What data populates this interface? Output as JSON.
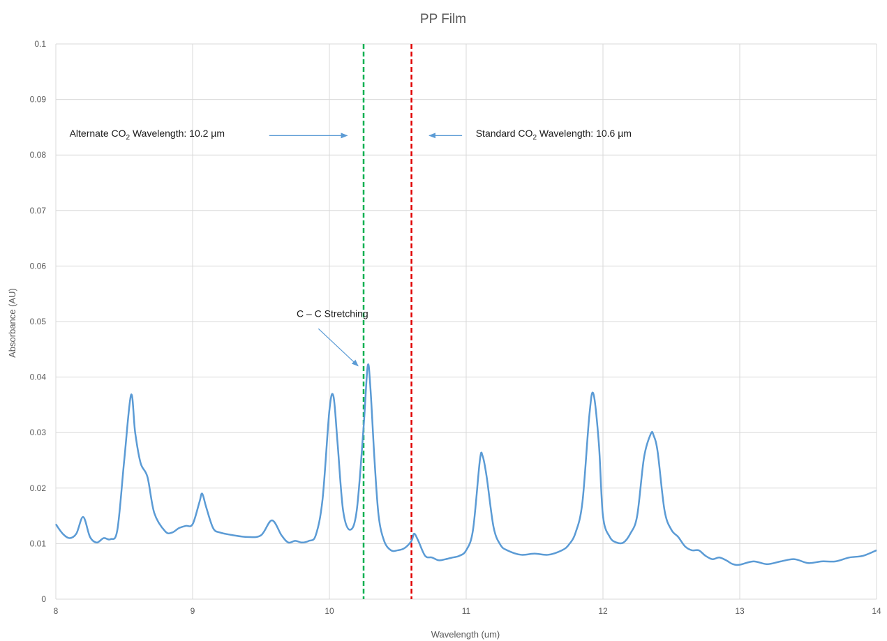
{
  "chart_data": {
    "type": "line",
    "title": "PP Film",
    "xlabel": "Wavelength (um)",
    "ylabel": "Absorbance (AU)",
    "xlim": [
      8,
      14
    ],
    "ylim": [
      0,
      0.1
    ],
    "x_ticks": [
      "8",
      "9",
      "10",
      "11",
      "12",
      "13",
      "14"
    ],
    "y_ticks": [
      "0",
      "0.01",
      "0.02",
      "0.03",
      "0.04",
      "0.05",
      "0.06",
      "0.07",
      "0.08",
      "0.09",
      "0.1"
    ],
    "grid": true,
    "series": [
      {
        "color": "#5B9BD5",
        "x": [
          8.0,
          8.05,
          8.1,
          8.15,
          8.2,
          8.25,
          8.3,
          8.35,
          8.4,
          8.45,
          8.5,
          8.55,
          8.58,
          8.62,
          8.67,
          8.72,
          8.8,
          8.85,
          8.9,
          8.95,
          9.0,
          9.05,
          9.07,
          9.1,
          9.15,
          9.2,
          9.3,
          9.4,
          9.5,
          9.58,
          9.65,
          9.7,
          9.75,
          9.8,
          9.85,
          9.9,
          9.95,
          10.0,
          10.03,
          10.06,
          10.1,
          10.15,
          10.2,
          10.25,
          10.28,
          10.3,
          10.33,
          10.36,
          10.4,
          10.45,
          10.5,
          10.55,
          10.6,
          10.62,
          10.65,
          10.7,
          10.75,
          10.8,
          10.85,
          10.9,
          10.95,
          11.0,
          11.05,
          11.1,
          11.12,
          11.15,
          11.2,
          11.25,
          11.3,
          11.4,
          11.5,
          11.6,
          11.7,
          11.75,
          11.8,
          11.85,
          11.9,
          11.93,
          11.97,
          12.0,
          12.05,
          12.1,
          12.15,
          12.2,
          12.25,
          12.3,
          12.35,
          12.37,
          12.4,
          12.45,
          12.5,
          12.55,
          12.6,
          12.65,
          12.7,
          12.75,
          12.8,
          12.85,
          12.9,
          12.95,
          13.0,
          13.1,
          13.2,
          13.3,
          13.4,
          13.5,
          13.6,
          13.7,
          13.8,
          13.9,
          14.0
        ],
        "y": [
          0.0135,
          0.0118,
          0.011,
          0.0118,
          0.0148,
          0.0112,
          0.0102,
          0.011,
          0.0108,
          0.0125,
          0.025,
          0.0368,
          0.03,
          0.0245,
          0.022,
          0.0155,
          0.0122,
          0.012,
          0.0128,
          0.0132,
          0.0135,
          0.0175,
          0.019,
          0.0165,
          0.0128,
          0.012,
          0.0115,
          0.0112,
          0.0115,
          0.0142,
          0.0115,
          0.0102,
          0.0105,
          0.0102,
          0.0105,
          0.0115,
          0.018,
          0.034,
          0.0365,
          0.028,
          0.016,
          0.0125,
          0.016,
          0.031,
          0.042,
          0.038,
          0.025,
          0.015,
          0.0105,
          0.0088,
          0.0088,
          0.0092,
          0.0105,
          0.0118,
          0.0105,
          0.0078,
          0.0075,
          0.007,
          0.0072,
          0.0075,
          0.0078,
          0.0088,
          0.0125,
          0.025,
          0.0258,
          0.022,
          0.013,
          0.0098,
          0.0088,
          0.008,
          0.0082,
          0.008,
          0.0088,
          0.0098,
          0.012,
          0.0175,
          0.033,
          0.037,
          0.028,
          0.015,
          0.0112,
          0.0102,
          0.0102,
          0.0118,
          0.015,
          0.0255,
          0.0298,
          0.0295,
          0.0265,
          0.016,
          0.0125,
          0.0112,
          0.0095,
          0.0088,
          0.0088,
          0.0078,
          0.0072,
          0.0075,
          0.007,
          0.0063,
          0.0062,
          0.0068,
          0.0063,
          0.0068,
          0.0072,
          0.0065,
          0.0068,
          0.0068,
          0.0075,
          0.0078,
          0.0088
        ]
      }
    ],
    "reference_lines": [
      {
        "x": 10.25,
        "color": "#00B050",
        "style": "dashed"
      },
      {
        "x": 10.6,
        "color": "#E00000",
        "style": "dashed"
      }
    ],
    "annotations": [
      {
        "text_main": "Alternate CO",
        "text_sub": "2",
        "text_rest": " Wavelength: 10.2 µm",
        "text_x": 8.1,
        "text_y": 0.0833,
        "arrow_from": [
          9.56,
          0.0835
        ],
        "arrow_to": [
          10.13,
          0.0835
        ]
      },
      {
        "text_main": "Standard CO",
        "text_sub": "2",
        "text_rest": " Wavelength: 10.6 µm",
        "text_x": 11.07,
        "text_y": 0.0833,
        "arrow_from": [
          10.97,
          0.0835
        ],
        "arrow_to": [
          10.73,
          0.0835
        ]
      },
      {
        "text_main": "C – C Stretching",
        "text_sub": "",
        "text_rest": "",
        "text_x": 9.76,
        "text_y": 0.0508,
        "arrow_from": [
          9.92,
          0.0487
        ],
        "arrow_to": [
          10.21,
          0.042
        ]
      }
    ]
  }
}
